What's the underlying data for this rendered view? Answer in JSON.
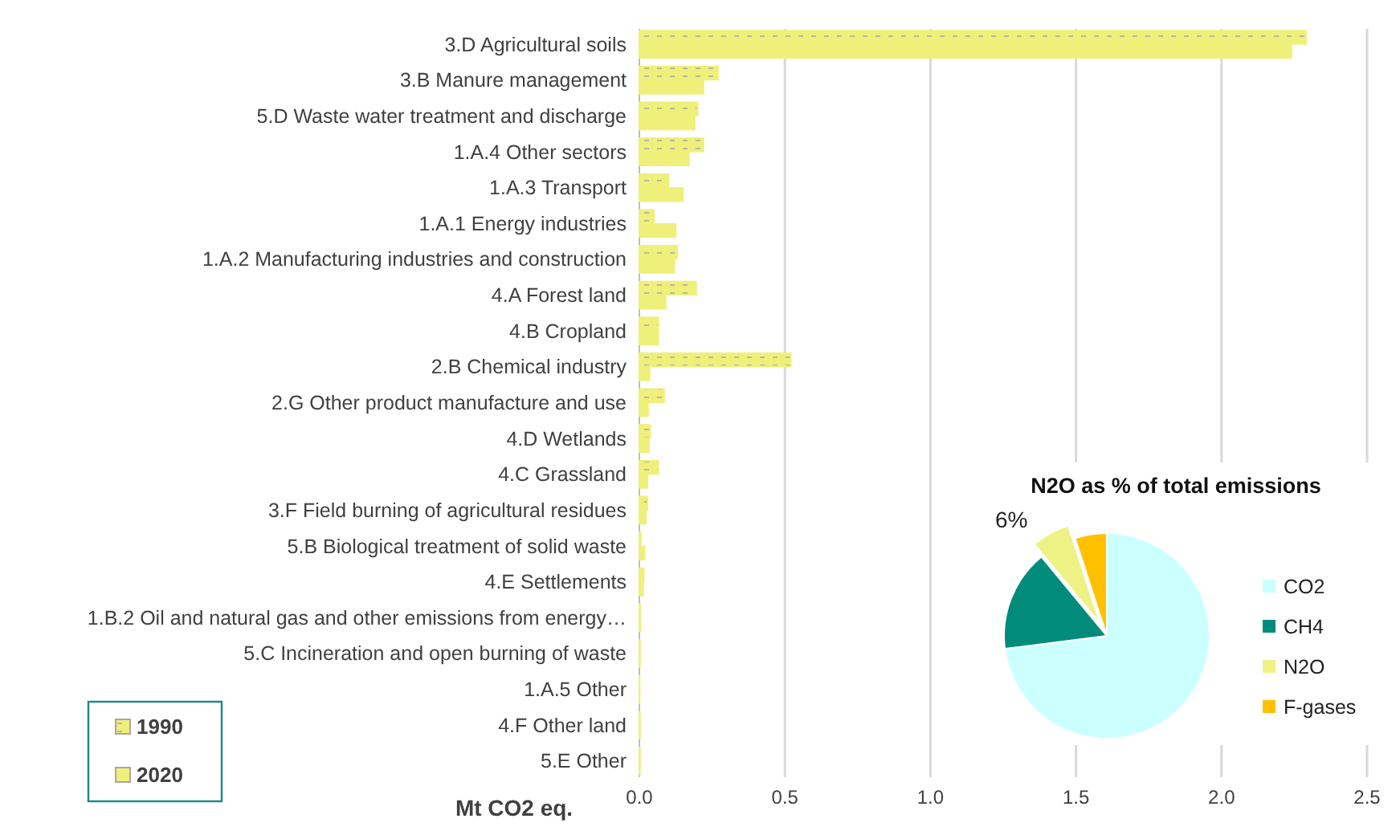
{
  "chart_data": [
    {
      "type": "bar",
      "orientation": "horizontal",
      "xlabel": "Mt CO2 eq.",
      "categories": [
        "3.D Agricultural soils",
        "3.B Manure management",
        "5.D Waste water treatment and discharge",
        "1.A.4 Other sectors",
        "1.A.3 Transport",
        "1.A.1 Energy industries",
        "1.A.2 Manufacturing industries and construction",
        "4.A Forest land",
        "4.B Cropland",
        "2.B Chemical industry",
        "2.G Other product manufacture and use",
        "4.D Wetlands",
        "4.C Grassland",
        "3.F Field burning of agricultural residues",
        "5.B Biological treatment of solid waste",
        "4.E Settlements",
        "1.B.2 Oil and natural gas and other emissions from energy…",
        "5.C Incineration and open burning of waste",
        "1.A.5 Other",
        "4.F Other land",
        "5.E Other"
      ],
      "series": [
        {
          "name": "1990",
          "color": "#eef07a",
          "values": [
            2.29,
            0.27,
            0.2,
            0.22,
            0.1,
            0.05,
            0.13,
            0.195,
            0.065,
            0.52,
            0.085,
            0.037,
            0.065,
            0.028,
            0.005,
            0.015,
            0.003,
            0.002,
            0.001,
            0.002,
            0.002
          ]
        },
        {
          "name": "2020",
          "color": "#eef07a",
          "values": [
            2.24,
            0.22,
            0.19,
            0.17,
            0.15,
            0.125,
            0.12,
            0.09,
            0.065,
            0.035,
            0.03,
            0.033,
            0.028,
            0.022,
            0.018,
            0.013,
            0.003,
            0.002,
            0.001,
            0.002,
            0.002
          ]
        }
      ],
      "xlim": [
        0,
        2.5
      ],
      "xticks": [
        {
          "value": 0,
          "label": "0.0"
        },
        {
          "value": 0.5,
          "label": "0.5"
        },
        {
          "value": 1,
          "label": "1.0"
        },
        {
          "value": 1.5,
          "label": "1.5"
        },
        {
          "value": 2,
          "label": "2.0"
        },
        {
          "value": 2.5,
          "label": "2.5"
        }
      ],
      "grid": "x",
      "legend": "bottom left"
    },
    {
      "type": "pie",
      "title": "N2O as % of total emissions",
      "categories": [
        "CO2",
        "CH4",
        "N2O",
        "F-gases"
      ],
      "values": [
        73,
        16,
        6,
        5
      ],
      "colors": [
        "#ccffff",
        "#008b7b",
        "#eef284",
        "#ffc000"
      ],
      "value_labels": [
        null,
        null,
        "6%",
        null
      ],
      "legend": "right"
    }
  ]
}
